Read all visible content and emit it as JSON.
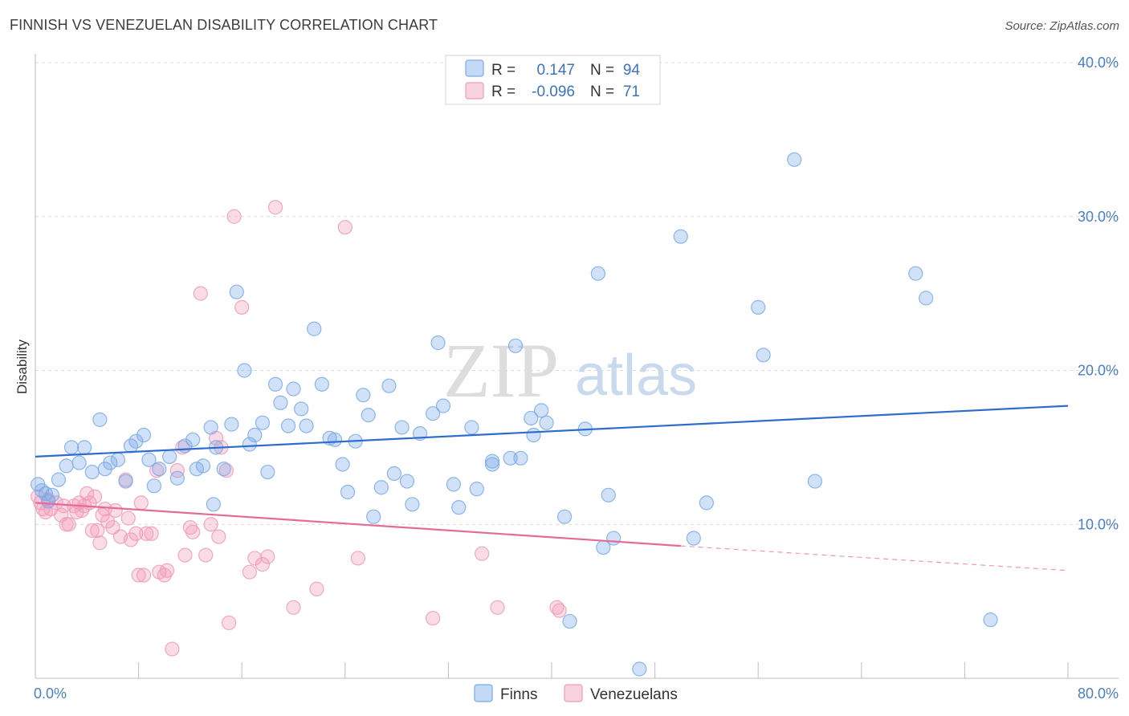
{
  "header": {
    "title": "FINNISH VS VENEZUELAN DISABILITY CORRELATION CHART",
    "source": "Source: ZipAtlas.com"
  },
  "watermark": {
    "zip": "ZIP",
    "atlas": "atlas"
  },
  "legend_top": {
    "r_label": "R =",
    "n_label": "N =",
    "rows": [
      {
        "r": "0.147",
        "n": "94",
        "color": "#7aaae8"
      },
      {
        "r": "-0.096",
        "n": "71",
        "color": "#f09bb6"
      }
    ]
  },
  "legend_bottom": {
    "items": [
      "Finns",
      "Venezuelans"
    ]
  },
  "chart_data": {
    "type": "scatter",
    "ylabel": "Disability",
    "xlim": [
      0,
      80
    ],
    "ylim": [
      0,
      40
    ],
    "x_tick_labels": [
      "0.0%",
      "80.0%"
    ],
    "y_ticks": [
      10,
      20,
      30,
      40
    ],
    "y_tick_labels": [
      "10.0%",
      "20.0%",
      "30.0%",
      "40.0%"
    ],
    "colors": {
      "finns": "#7aaae8",
      "finns_line": "#2d6ccc",
      "venezuelans": "#f09bb6",
      "venezuelans_line": "#e56b97"
    },
    "series": [
      {
        "name": "Finns",
        "trend": {
          "x0": 0,
          "y0": 14.4,
          "x1": 80,
          "y1": 17.7
        },
        "points": [
          [
            0.2,
            12.6
          ],
          [
            0.5,
            12.2
          ],
          [
            0.8,
            12.0
          ],
          [
            1.0,
            11.5
          ],
          [
            1.3,
            11.9
          ],
          [
            1.8,
            12.9
          ],
          [
            2.4,
            13.8
          ],
          [
            2.8,
            15.0
          ],
          [
            3.4,
            14.0
          ],
          [
            3.8,
            15.0
          ],
          [
            4.4,
            13.4
          ],
          [
            5.0,
            16.8
          ],
          [
            5.4,
            13.6
          ],
          [
            5.8,
            14.0
          ],
          [
            6.4,
            14.2
          ],
          [
            7.0,
            12.8
          ],
          [
            7.4,
            15.1
          ],
          [
            7.8,
            15.4
          ],
          [
            8.4,
            15.8
          ],
          [
            8.8,
            14.2
          ],
          [
            9.2,
            12.5
          ],
          [
            9.6,
            13.6
          ],
          [
            10.4,
            14.4
          ],
          [
            11.0,
            13.0
          ],
          [
            11.6,
            15.1
          ],
          [
            12.2,
            15.5
          ],
          [
            12.5,
            13.6
          ],
          [
            13.0,
            13.8
          ],
          [
            13.6,
            16.3
          ],
          [
            13.8,
            11.3
          ],
          [
            14.0,
            15.0
          ],
          [
            14.6,
            13.6
          ],
          [
            15.2,
            16.5
          ],
          [
            15.6,
            25.1
          ],
          [
            16.2,
            20.0
          ],
          [
            16.6,
            15.2
          ],
          [
            17.0,
            15.8
          ],
          [
            17.6,
            16.6
          ],
          [
            18.0,
            13.4
          ],
          [
            18.6,
            19.1
          ],
          [
            19.0,
            17.9
          ],
          [
            19.6,
            16.4
          ],
          [
            20.0,
            18.8
          ],
          [
            20.6,
            17.5
          ],
          [
            21.0,
            16.4
          ],
          [
            21.6,
            22.7
          ],
          [
            22.2,
            19.1
          ],
          [
            22.8,
            15.6
          ],
          [
            23.2,
            15.5
          ],
          [
            23.8,
            13.9
          ],
          [
            24.2,
            12.1
          ],
          [
            24.8,
            15.4
          ],
          [
            25.4,
            18.4
          ],
          [
            25.8,
            17.1
          ],
          [
            26.2,
            10.5
          ],
          [
            26.8,
            12.4
          ],
          [
            27.4,
            19.0
          ],
          [
            27.8,
            13.3
          ],
          [
            28.4,
            16.3
          ],
          [
            28.8,
            12.8
          ],
          [
            29.2,
            11.3
          ],
          [
            29.8,
            15.9
          ],
          [
            30.8,
            17.2
          ],
          [
            31.2,
            21.8
          ],
          [
            31.6,
            17.7
          ],
          [
            32.4,
            12.6
          ],
          [
            32.8,
            11.1
          ],
          [
            33.8,
            16.3
          ],
          [
            34.2,
            12.3
          ],
          [
            35.4,
            14.1
          ],
          [
            35.4,
            13.9
          ],
          [
            36.8,
            14.3
          ],
          [
            37.2,
            21.6
          ],
          [
            37.6,
            14.3
          ],
          [
            38.4,
            16.9
          ],
          [
            38.6,
            15.8
          ],
          [
            39.2,
            17.4
          ],
          [
            39.6,
            16.6
          ],
          [
            41.0,
            10.5
          ],
          [
            41.4,
            3.7
          ],
          [
            42.6,
            16.2
          ],
          [
            43.6,
            26.3
          ],
          [
            44.0,
            8.5
          ],
          [
            44.4,
            11.9
          ],
          [
            44.8,
            9.1
          ],
          [
            46.8,
            0.6
          ],
          [
            50.0,
            28.7
          ],
          [
            51.0,
            9.1
          ],
          [
            52.0,
            11.4
          ],
          [
            56.0,
            24.1
          ],
          [
            56.4,
            21.0
          ],
          [
            58.8,
            33.7
          ],
          [
            60.4,
            12.8
          ],
          [
            68.2,
            26.3
          ],
          [
            69.0,
            24.7
          ],
          [
            74.0,
            3.8
          ]
        ]
      },
      {
        "name": "Venezuelans",
        "trend": {
          "x0": 0,
          "y0": 11.4,
          "x1": 50,
          "y1": 8.6,
          "dash_x1": 80,
          "dash_y1": 7.0
        },
        "points": [
          [
            0.2,
            11.8
          ],
          [
            0.4,
            11.4
          ],
          [
            0.6,
            11.0
          ],
          [
            0.8,
            10.8
          ],
          [
            1.0,
            11.6
          ],
          [
            1.2,
            11.0
          ],
          [
            1.6,
            11.4
          ],
          [
            2.0,
            10.6
          ],
          [
            2.2,
            11.2
          ],
          [
            2.4,
            10.0
          ],
          [
            2.6,
            10.0
          ],
          [
            3.0,
            11.2
          ],
          [
            3.2,
            10.8
          ],
          [
            3.4,
            11.4
          ],
          [
            3.6,
            10.9
          ],
          [
            3.8,
            11.2
          ],
          [
            4.0,
            12.0
          ],
          [
            4.2,
            11.4
          ],
          [
            4.4,
            9.6
          ],
          [
            4.6,
            11.8
          ],
          [
            4.8,
            9.6
          ],
          [
            5.0,
            8.8
          ],
          [
            5.2,
            10.6
          ],
          [
            5.4,
            11.0
          ],
          [
            5.6,
            10.2
          ],
          [
            6.0,
            9.8
          ],
          [
            6.2,
            10.9
          ],
          [
            6.6,
            9.2
          ],
          [
            7.0,
            12.9
          ],
          [
            7.2,
            10.4
          ],
          [
            7.4,
            9.0
          ],
          [
            7.8,
            9.4
          ],
          [
            8.0,
            6.7
          ],
          [
            8.2,
            11.4
          ],
          [
            8.4,
            6.7
          ],
          [
            8.6,
            9.4
          ],
          [
            9.0,
            9.4
          ],
          [
            9.4,
            13.5
          ],
          [
            9.6,
            6.9
          ],
          [
            10.0,
            6.7
          ],
          [
            10.2,
            7.0
          ],
          [
            10.6,
            1.9
          ],
          [
            11.0,
            13.5
          ],
          [
            11.4,
            15.0
          ],
          [
            11.6,
            8.0
          ],
          [
            12.0,
            9.8
          ],
          [
            12.2,
            9.5
          ],
          [
            12.8,
            25.0
          ],
          [
            13.2,
            8.0
          ],
          [
            13.6,
            10.0
          ],
          [
            14.0,
            15.6
          ],
          [
            14.2,
            9.2
          ],
          [
            14.4,
            15.0
          ],
          [
            14.8,
            13.5
          ],
          [
            15.0,
            3.6
          ],
          [
            15.4,
            30.0
          ],
          [
            16.0,
            24.1
          ],
          [
            16.6,
            6.9
          ],
          [
            17.0,
            7.8
          ],
          [
            17.6,
            7.4
          ],
          [
            18.0,
            7.9
          ],
          [
            18.6,
            30.6
          ],
          [
            20.0,
            4.6
          ],
          [
            21.8,
            5.8
          ],
          [
            24.0,
            29.3
          ],
          [
            25.0,
            7.8
          ],
          [
            30.8,
            3.9
          ],
          [
            34.6,
            8.1
          ],
          [
            35.8,
            4.6
          ],
          [
            40.4,
            4.6
          ],
          [
            40.6,
            4.4
          ]
        ]
      }
    ]
  }
}
